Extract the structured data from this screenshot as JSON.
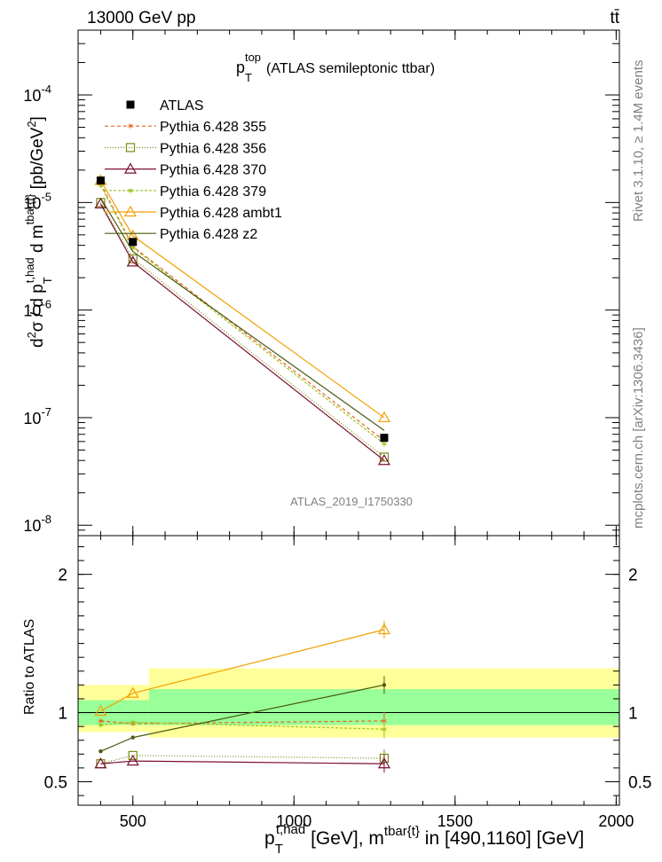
{
  "header": {
    "energy_label": "13000 GeV pp",
    "process_label": "tt̄"
  },
  "side_labels": {
    "rivet": "Rivet 3.1.10, ≥ 1.4M events",
    "source": "mcplots.cern.ch [arXiv:1306.3436]"
  },
  "chart_data": [
    {
      "type": "line",
      "title": "p_T^top (ATLAS semileptonic ttbar)",
      "title_main": "p",
      "title_sup": "top",
      "title_sub": "T",
      "title_rest": "(ATLAS semileptonic ttbar)",
      "ylabel": "d²σ / d p_T^t,had d m^tbar{t} [pb/GeV²]",
      "ylabel_parts": {
        "a": "d",
        "sup2": "2",
        "sigma": "σ / d p",
        "sub_T": "T",
        "sup_thad": "t,had",
        "b": " d m",
        "sup_tbar": "tbar{t}",
        "c": " [pb/GeV",
        "sup_2": "2",
        "d": "]"
      },
      "watermark": "ATLAS_2019_I1750330",
      "xlim": [
        330,
        2010
      ],
      "ylim": [
        8e-09,
        0.0004
      ],
      "yscale": "log",
      "ytick_labels": [
        {
          "base": "10",
          "exp": "-4",
          "value": 0.0001
        },
        {
          "base": "10",
          "exp": "-5",
          "value": 1e-05
        },
        {
          "base": "10",
          "exp": "-6",
          "value": 1e-06
        },
        {
          "base": "10",
          "exp": "-7",
          "value": 1e-07
        },
        {
          "base": "10",
          "exp": "-8",
          "value": 1e-08
        }
      ],
      "legend_position": "top-left",
      "x": [
        400,
        500,
        1280
      ],
      "series": [
        {
          "name": "ATLAS",
          "color": "#000000",
          "marker": "filled-square",
          "values": [
            1.6e-05,
            4.3e-06,
            6.5e-08
          ]
        },
        {
          "name": "Pythia 6.428 355",
          "color": "#e8641e",
          "marker": "star",
          "dash": "4,3",
          "values": [
            1.5e-05,
            3.9e-06,
            6.1e-08
          ]
        },
        {
          "name": "Pythia 6.428 356",
          "color": "#7a8a12",
          "marker": "open-square",
          "dash": "1,2",
          "values": [
            1e-05,
            3e-06,
            4.3e-08
          ]
        },
        {
          "name": "Pythia 6.428 370",
          "color": "#7a1030",
          "marker": "open-triangle",
          "dash": "",
          "values": [
            9.7e-06,
            2.8e-06,
            4e-08
          ]
        },
        {
          "name": "Pythia 6.428 379",
          "color": "#9ac41e",
          "marker": "star",
          "dash": "3,2",
          "values": [
            1.45e-05,
            3.8e-06,
            5.7e-08
          ]
        },
        {
          "name": "Pythia 6.428 ambt1",
          "color": "#f2a000",
          "marker": "open-triangle",
          "dash": "",
          "values": [
            1.6e-05,
            4.9e-06,
            1e-07
          ]
        },
        {
          "name": "Pythia 6.428 z2",
          "color": "#4a5a10",
          "marker": "none",
          "dash": "",
          "values": [
            1.1e-05,
            3.5e-06,
            7.6e-08
          ]
        }
      ]
    },
    {
      "type": "line",
      "ylabel": "Ratio to ATLAS",
      "xlabel": "p_T^t,had [GeV], m^tbar{t} in [490,1160] [GeV]",
      "xlabel_parts": {
        "p": "p",
        "sub_T": "T",
        "sup_thad": "t,had",
        "b": " [GeV], m",
        "sup_tbar": "tbar{t}",
        "c": " in [490,1160] [GeV]"
      },
      "xlim": [
        330,
        2010
      ],
      "ylim": [
        0.33,
        2.28
      ],
      "xtick_labels": [
        "500",
        "1000",
        "1500",
        "2000"
      ],
      "xticks": [
        500,
        1000,
        1500,
        2000
      ],
      "ytick_labels": [
        "2",
        "1",
        "0.5"
      ],
      "yticks": [
        2,
        1,
        0.5
      ],
      "bands": [
        {
          "x0": 330,
          "x1": 550,
          "stat_lo": 0.91,
          "stat_hi": 1.09,
          "tot_lo": 0.86,
          "tot_hi": 1.2
        },
        {
          "x0": 550,
          "x1": 2010,
          "stat_lo": 0.91,
          "stat_hi": 1.17,
          "tot_lo": 0.82,
          "tot_hi": 1.32
        }
      ],
      "x": [
        400,
        500,
        1280
      ],
      "series": [
        {
          "name": "Pythia 6.428 355",
          "color": "#e8641e",
          "marker": "star",
          "dash": "4,3",
          "values": [
            0.94,
            0.92,
            0.94
          ]
        },
        {
          "name": "Pythia 6.428 356",
          "color": "#7a8a12",
          "marker": "open-square",
          "dash": "1,2",
          "values": [
            0.63,
            0.69,
            0.67
          ]
        },
        {
          "name": "Pythia 6.428 370",
          "color": "#7a1030",
          "marker": "open-triangle",
          "dash": "",
          "values": [
            0.63,
            0.65,
            0.63
          ]
        },
        {
          "name": "Pythia 6.428 379",
          "color": "#9ac41e",
          "marker": "star",
          "dash": "3,2",
          "values": [
            0.91,
            0.93,
            0.88
          ]
        },
        {
          "name": "Pythia 6.428 ambt1",
          "color": "#f2a000",
          "marker": "open-triangle",
          "dash": "",
          "values": [
            1.01,
            1.14,
            1.6
          ]
        },
        {
          "name": "Pythia 6.428 z2",
          "color": "#4a5a10",
          "marker": "dot",
          "dash": "",
          "values": [
            0.72,
            0.82,
            1.2
          ]
        }
      ]
    }
  ]
}
